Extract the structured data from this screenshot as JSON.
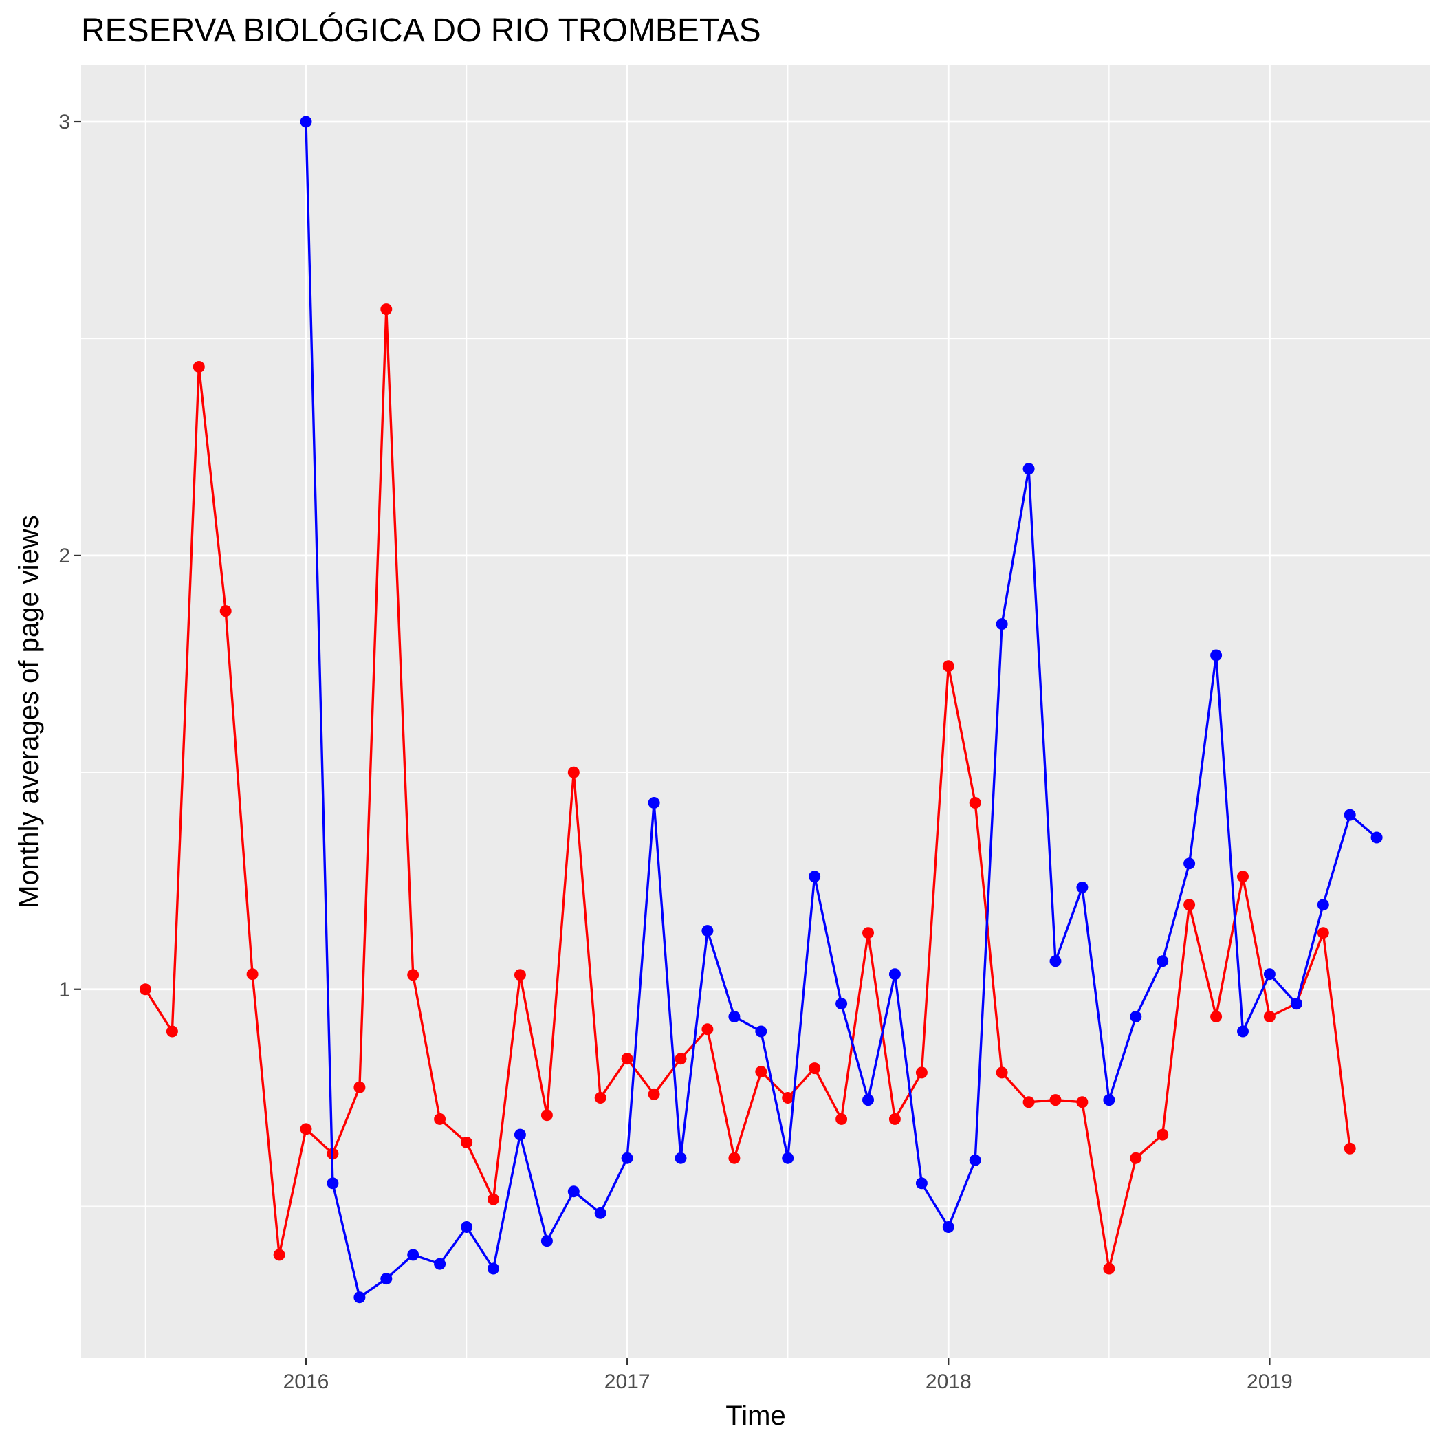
{
  "chart_data": {
    "type": "line",
    "title": "RESERVA BIOLÓGICA DO RIO TROMBETAS",
    "xlabel": "Time",
    "ylabel": "Monthly averages of page views",
    "x_range": [
      2015.3,
      2019.5
    ],
    "y_range": [
      0.15,
      3.13
    ],
    "x_ticks": [
      {
        "value": 2016,
        "label": "2016"
      },
      {
        "value": 2017,
        "label": "2017"
      },
      {
        "value": 2018,
        "label": "2018"
      },
      {
        "value": 2019,
        "label": "2019"
      }
    ],
    "y_ticks": [
      {
        "value": 1,
        "label": "1"
      },
      {
        "value": 2,
        "label": "2"
      },
      {
        "value": 3,
        "label": "3"
      }
    ],
    "grid": true,
    "legend": "none",
    "series": [
      {
        "color": "#FF0000",
        "x": [
          "2015-07",
          "2015-08",
          "2015-09",
          "2015-10",
          "2015-11",
          "2015-12",
          "2016-01",
          "2016-02",
          "2016-03",
          "2016-04",
          "2016-05",
          "2016-06",
          "2016-07",
          "2016-08",
          "2016-09",
          "2016-10",
          "2016-11",
          "2016-12",
          "2017-01",
          "2017-02",
          "2017-03",
          "2017-04",
          "2017-05",
          "2017-06",
          "2017-07",
          "2017-08",
          "2017-09",
          "2017-10",
          "2017-11",
          "2017-12",
          "2018-01",
          "2018-02",
          "2018-03",
          "2018-04",
          "2018-05",
          "2018-06",
          "2018-07",
          "2018-08",
          "2018-09",
          "2018-10",
          "2018-11",
          "2018-12",
          "2019-01",
          "2019-02",
          "2019-03",
          "2019-04"
        ],
        "values": [
          1.0,
          0.903,
          2.435,
          1.872,
          1.035,
          0.388,
          0.678,
          0.621,
          0.774,
          2.568,
          1.033,
          0.701,
          0.647,
          0.516,
          1.033,
          0.71,
          1.5,
          0.75,
          0.84,
          0.758,
          0.84,
          0.908,
          0.611,
          0.81,
          0.75,
          0.818,
          0.701,
          1.13,
          0.701,
          0.808,
          1.745,
          1.43,
          0.808,
          0.74,
          0.745,
          0.74,
          0.356,
          0.611,
          0.665,
          1.195,
          0.937,
          1.26,
          0.937,
          0.967,
          1.13,
          0.633
        ]
      },
      {
        "color": "#0000FF",
        "x": [
          "2016-01",
          "2016-02",
          "2016-03",
          "2016-04",
          "2016-05",
          "2016-06",
          "2016-07",
          "2016-08",
          "2016-09",
          "2016-10",
          "2016-11",
          "2016-12",
          "2017-01",
          "2017-02",
          "2017-03",
          "2017-04",
          "2017-05",
          "2017-06",
          "2017-07",
          "2017-08",
          "2017-09",
          "2017-10",
          "2017-11",
          "2017-12",
          "2018-01",
          "2018-02",
          "2018-03",
          "2018-04",
          "2018-05",
          "2018-06",
          "2018-07",
          "2018-08",
          "2018-09",
          "2018-10",
          "2018-11",
          "2018-12",
          "2019-01",
          "2019-02",
          "2019-03",
          "2019-04",
          "2019-05"
        ],
        "values": [
          3.0,
          0.553,
          0.29,
          0.333,
          0.388,
          0.367,
          0.452,
          0.356,
          0.665,
          0.42,
          0.534,
          0.484,
          0.611,
          1.43,
          0.611,
          1.135,
          0.937,
          0.903,
          0.611,
          1.26,
          0.967,
          0.745,
          1.035,
          0.553,
          0.452,
          0.606,
          1.842,
          2.2,
          1.065,
          1.235,
          0.745,
          0.937,
          1.065,
          1.29,
          1.77,
          0.903,
          1.035,
          0.967,
          1.195,
          1.402,
          1.35
        ]
      }
    ]
  }
}
